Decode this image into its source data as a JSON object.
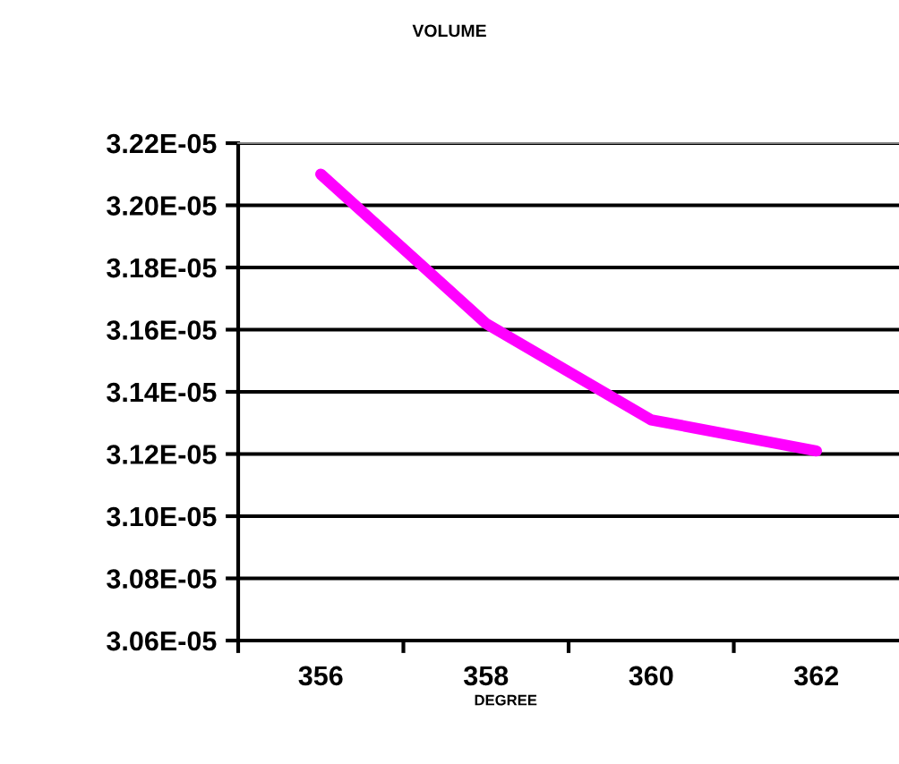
{
  "chart_data": {
    "type": "line",
    "title": "VOLUME",
    "xlabel": "DEGREE",
    "categories": [
      "356",
      "358",
      "360",
      "362"
    ],
    "series": [
      {
        "color": "#ff00ff",
        "values": [
          3.21e-05,
          3.162e-05,
          3.131e-05,
          3.121e-05
        ]
      }
    ],
    "ylim": [
      3.06e-05,
      3.22e-05
    ],
    "yticks": [
      {
        "value": 3.06e-05,
        "label": "3.06E-05"
      },
      {
        "value": 3.08e-05,
        "label": "3.08E-05"
      },
      {
        "value": 3.1e-05,
        "label": "3.10E-05"
      },
      {
        "value": 3.12e-05,
        "label": "3.12E-05"
      },
      {
        "value": 3.14e-05,
        "label": "3.14E-05"
      },
      {
        "value": 3.16e-05,
        "label": "3.16E-05"
      },
      {
        "value": 3.18e-05,
        "label": "3.18E-05"
      },
      {
        "value": 3.2e-05,
        "label": "3.20E-05"
      },
      {
        "value": 3.22e-05,
        "label": "3.22E-05"
      }
    ],
    "grid": "y",
    "marker": "none",
    "line_style": "solid"
  }
}
